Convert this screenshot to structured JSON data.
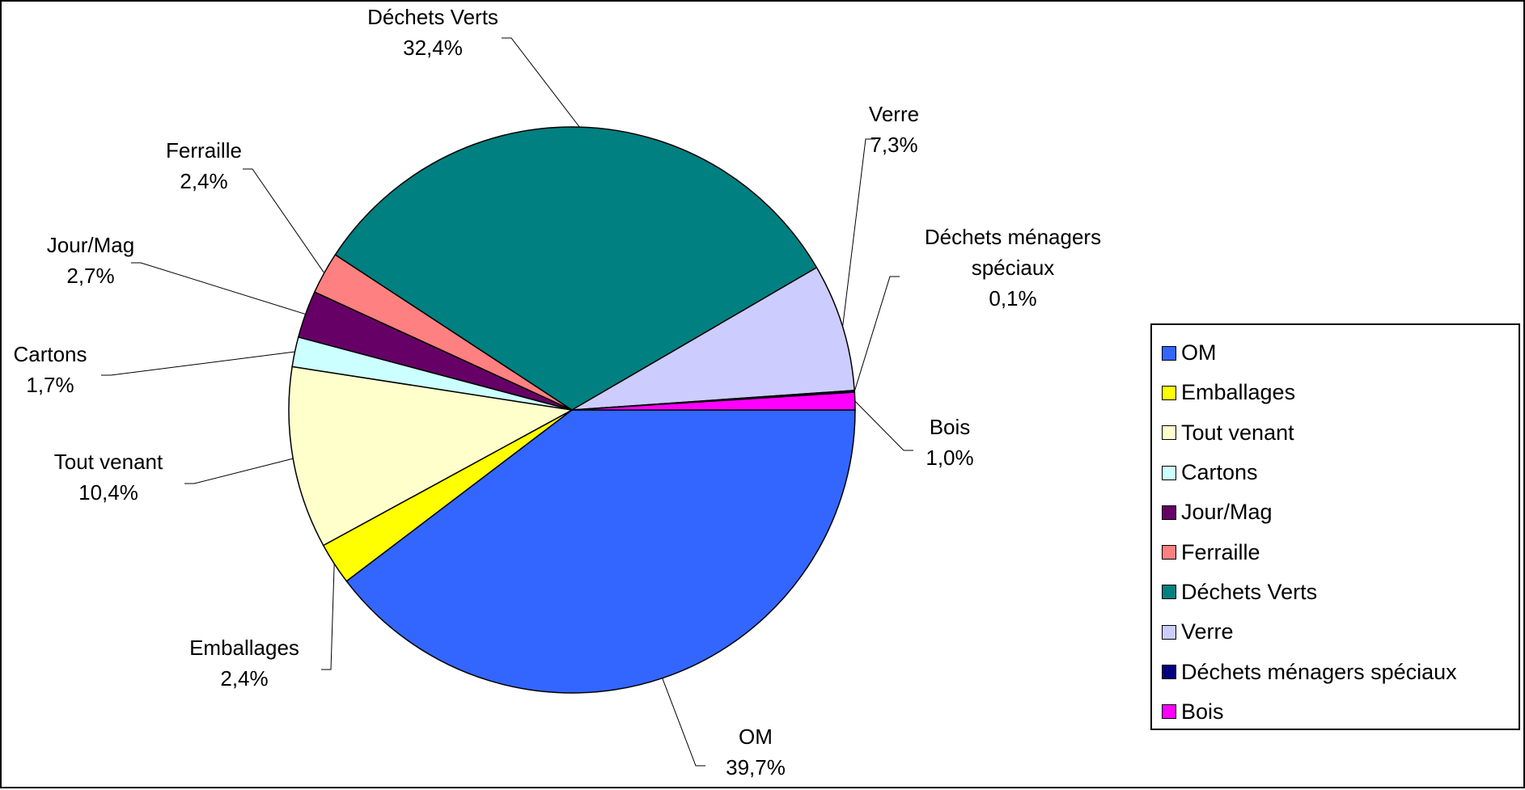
{
  "chart_data": {
    "type": "pie",
    "title": "",
    "slices": [
      {
        "label": "OM",
        "value": 39.7,
        "value_text": "39,7%",
        "color": "#3366ff"
      },
      {
        "label": "Emballages",
        "value": 2.4,
        "value_text": "2,4%",
        "color": "#ffff00"
      },
      {
        "label": "Tout venant",
        "value": 10.4,
        "value_text": "10,4%",
        "color": "#ffffcc"
      },
      {
        "label": "Cartons",
        "value": 1.7,
        "value_text": "1,7%",
        "color": "#ccffff"
      },
      {
        "label": "Jour/Mag",
        "value": 2.7,
        "value_text": "2,7%",
        "color": "#660066"
      },
      {
        "label": "Ferraille",
        "value": 2.4,
        "value_text": "2,4%",
        "color": "#ff8080"
      },
      {
        "label": "Déchets Verts",
        "value": 32.4,
        "value_text": "32,4%",
        "color": "#008080"
      },
      {
        "label": "Verre",
        "value": 7.3,
        "value_text": "7,3%",
        "color": "#ccccff"
      },
      {
        "label": "Déchets ménagers spéciaux",
        "value": 0.1,
        "value_text": "0,1%",
        "color": "#000080"
      },
      {
        "label": "Bois",
        "value": 1.0,
        "value_text": "1,0%",
        "color": "#ff00ff"
      }
    ],
    "legend": {
      "position": "right",
      "items": [
        "OM",
        "Emballages",
        "Tout venant",
        "Cartons",
        "Jour/Mag",
        "Ferraille",
        "Déchets Verts",
        "Verre",
        "Déchets ménagers spéciaux",
        "Bois"
      ]
    }
  }
}
